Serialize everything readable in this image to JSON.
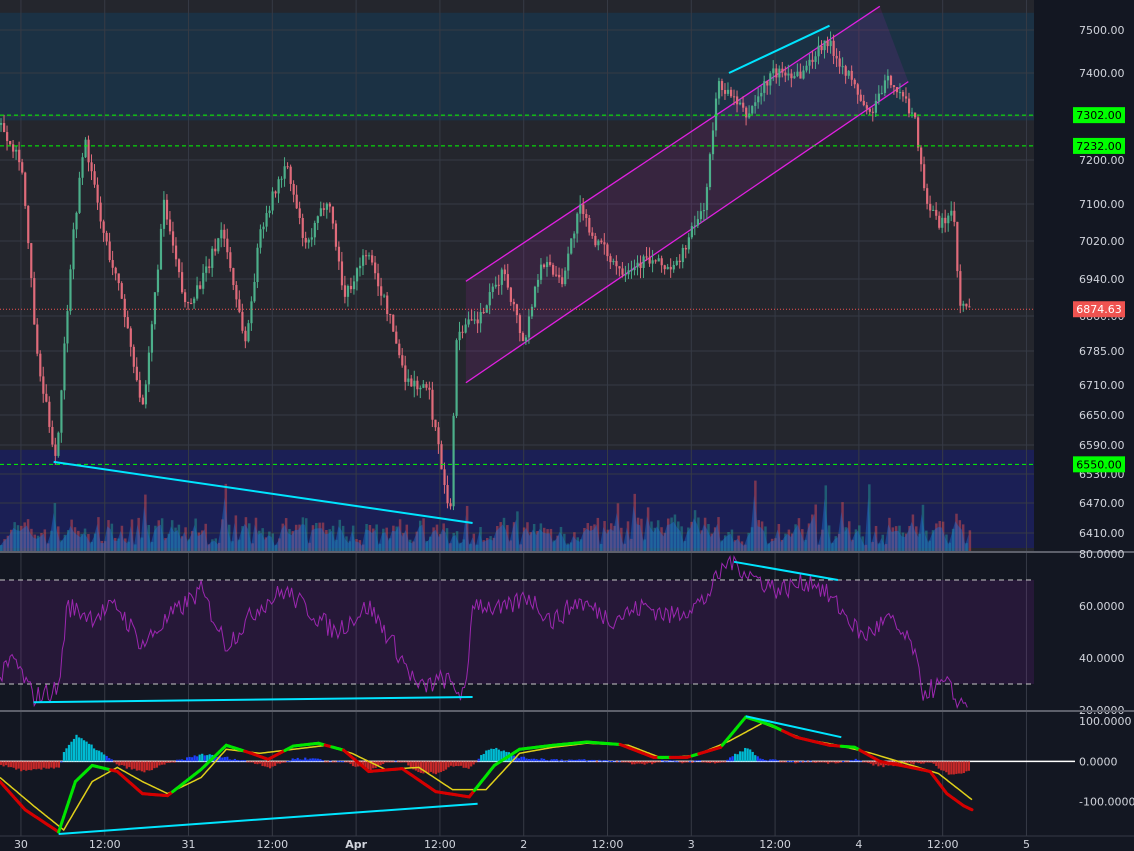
{
  "chart_data": {
    "type": "candlestick",
    "price_axis": {
      "ticks": [
        "7500.00",
        "7400.00",
        "7300.00",
        "7200.00",
        "7100.00",
        "7020.00",
        "6940.00",
        "6860.00",
        "6785.00",
        "6710.00",
        "6650.00",
        "6590.00",
        "6530.00",
        "6470.00",
        "6410.00"
      ],
      "ylim": [
        6380,
        7540
      ]
    },
    "time_axis": {
      "ticks": [
        {
          "label": "30",
          "bold": false
        },
        {
          "label": "12:00",
          "bold": false
        },
        {
          "label": "31",
          "bold": false
        },
        {
          "label": "12:00",
          "bold": false
        },
        {
          "label": "Apr",
          "bold": true
        },
        {
          "label": "12:00",
          "bold": false
        },
        {
          "label": "2",
          "bold": false
        },
        {
          "label": "12:00",
          "bold": false
        },
        {
          "label": "3",
          "bold": false
        },
        {
          "label": "12:00",
          "bold": false
        },
        {
          "label": "4",
          "bold": false
        },
        {
          "label": "12:00",
          "bold": false
        },
        {
          "label": "5",
          "bold": false
        }
      ],
      "xlim": [
        0,
        6.17
      ]
    },
    "price_path": [
      [
        0,
        7280
      ],
      [
        0.12,
        7200
      ],
      [
        0.22,
        6750
      ],
      [
        0.33,
        6560
      ],
      [
        0.42,
        7000
      ],
      [
        0.5,
        7250
      ],
      [
        0.6,
        7050
      ],
      [
        0.72,
        6900
      ],
      [
        0.85,
        6650
      ],
      [
        0.97,
        7100
      ],
      [
        1.1,
        6880
      ],
      [
        1.22,
        6950
      ],
      [
        1.32,
        7050
      ],
      [
        1.46,
        6800
      ],
      [
        1.55,
        7050
      ],
      [
        1.7,
        7190
      ],
      [
        1.82,
        7000
      ],
      [
        1.95,
        7120
      ],
      [
        2.05,
        6900
      ],
      [
        2.18,
        7000
      ],
      [
        2.3,
        6880
      ],
      [
        2.42,
        6720
      ],
      [
        2.55,
        6700
      ],
      [
        2.68,
        6450
      ],
      [
        2.72,
        6830
      ],
      [
        2.85,
        6850
      ],
      [
        3.0,
        6960
      ],
      [
        3.12,
        6800
      ],
      [
        3.22,
        6980
      ],
      [
        3.35,
        6940
      ],
      [
        3.45,
        7090
      ],
      [
        3.55,
        7020
      ],
      [
        3.7,
        6960
      ],
      [
        3.85,
        6980
      ],
      [
        4.02,
        6960
      ],
      [
        4.2,
        7100
      ],
      [
        4.28,
        7380
      ],
      [
        4.45,
        7300
      ],
      [
        4.6,
        7400
      ],
      [
        4.78,
        7400
      ],
      [
        4.92,
        7480
      ],
      [
        5.05,
        7400
      ],
      [
        5.18,
        7300
      ],
      [
        5.3,
        7390
      ],
      [
        5.45,
        7300
      ],
      [
        5.52,
        7110
      ],
      [
        5.6,
        7050
      ],
      [
        5.68,
        7090
      ],
      [
        5.72,
        6880
      ],
      [
        5.78,
        6874.63
      ]
    ],
    "price_lines": [
      {
        "label": "7302.00",
        "value": 7302,
        "color": "#00ff00"
      },
      {
        "label": "7232.00",
        "value": 7232,
        "color": "#00ff00"
      },
      {
        "label": "6550.00",
        "value": 6550,
        "color": "#00ff00"
      }
    ],
    "last_price": {
      "label": "6874.63",
      "value": 6874.63,
      "color": "#ef5350"
    },
    "channel": {
      "upper": [
        [
          2.78,
          6935
        ],
        [
          5.25,
          7555
        ]
      ],
      "lower": [
        [
          2.78,
          6715
        ],
        [
          5.42,
          7380
        ]
      ],
      "color": "#e020e0"
    },
    "price_trendlines": [
      {
        "from": [
          0.32,
          6555
        ],
        "to": [
          2.82,
          6430
        ],
        "color": "#00e5ff"
      },
      {
        "from": [
          4.35,
          7400
        ],
        "to": [
          4.95,
          7510
        ],
        "color": "#00e5ff"
      }
    ],
    "zones": [
      {
        "from": 7290,
        "to": 7540,
        "color": "#1b3347"
      },
      {
        "from": 6380,
        "to": 6580,
        "color": "#1b1f5a"
      }
    ],
    "volume_color": "#1f6fd0",
    "rsi": {
      "ticks": [
        "80.0000",
        "60.0000",
        "40.0000",
        "20.0000"
      ],
      "ylim": [
        20,
        80
      ],
      "band": [
        30,
        70
      ],
      "path": [
        [
          0,
          32
        ],
        [
          0.08,
          40
        ],
        [
          0.2,
          25
        ],
        [
          0.35,
          28
        ],
        [
          0.4,
          60
        ],
        [
          0.55,
          56
        ],
        [
          0.7,
          60
        ],
        [
          0.85,
          45
        ],
        [
          1.0,
          55
        ],
        [
          1.2,
          66
        ],
        [
          1.35,
          45
        ],
        [
          1.55,
          60
        ],
        [
          1.7,
          66
        ],
        [
          1.85,
          58
        ],
        [
          2.0,
          50
        ],
        [
          2.2,
          60
        ],
        [
          2.35,
          45
        ],
        [
          2.5,
          28
        ],
        [
          2.65,
          32
        ],
        [
          2.78,
          25
        ],
        [
          2.82,
          62
        ],
        [
          3.0,
          58
        ],
        [
          3.15,
          64
        ],
        [
          3.3,
          54
        ],
        [
          3.45,
          62
        ],
        [
          3.65,
          55
        ],
        [
          3.85,
          60
        ],
        [
          4.0,
          56
        ],
        [
          4.2,
          62
        ],
        [
          4.35,
          78
        ],
        [
          4.5,
          71
        ],
        [
          4.65,
          66
        ],
        [
          4.85,
          70
        ],
        [
          5.0,
          60
        ],
        [
          5.15,
          48
        ],
        [
          5.3,
          55
        ],
        [
          5.45,
          44
        ],
        [
          5.5,
          27
        ],
        [
          5.65,
          30
        ],
        [
          5.72,
          22
        ],
        [
          5.78,
          24
        ]
      ],
      "color": "#9c27b0",
      "trendlines": [
        {
          "from": [
            0.2,
            23
          ],
          "to": [
            2.82,
            25
          ],
          "color": "#00e5ff"
        },
        {
          "from": [
            4.38,
            77
          ],
          "to": [
            5.0,
            70
          ],
          "color": "#00e5ff"
        }
      ]
    },
    "oscillator": {
      "ticks": [
        "100.0000",
        "0.0000",
        "-100.0000"
      ],
      "ylim": [
        -185,
        120
      ],
      "fast": [
        [
          0,
          -50
        ],
        [
          0.15,
          -120
        ],
        [
          0.35,
          -175
        ],
        [
          0.45,
          -50
        ],
        [
          0.55,
          -10
        ],
        [
          0.7,
          -25
        ],
        [
          0.85,
          -80
        ],
        [
          1.0,
          -85
        ],
        [
          1.2,
          -20
        ],
        [
          1.35,
          40
        ],
        [
          1.5,
          20
        ],
        [
          1.6,
          5
        ],
        [
          1.75,
          38
        ],
        [
          1.9,
          45
        ],
        [
          2.05,
          28
        ],
        [
          2.2,
          -25
        ],
        [
          2.4,
          -18
        ],
        [
          2.6,
          -75
        ],
        [
          2.8,
          -88
        ],
        [
          2.95,
          -10
        ],
        [
          3.1,
          30
        ],
        [
          3.3,
          40
        ],
        [
          3.5,
          48
        ],
        [
          3.7,
          42
        ],
        [
          3.9,
          10
        ],
        [
          4.1,
          10
        ],
        [
          4.3,
          35
        ],
        [
          4.45,
          110
        ],
        [
          4.6,
          90
        ],
        [
          4.75,
          60
        ],
        [
          4.95,
          40
        ],
        [
          5.1,
          35
        ],
        [
          5.25,
          0
        ],
        [
          5.4,
          -12
        ],
        [
          5.55,
          -25
        ],
        [
          5.65,
          -80
        ],
        [
          5.75,
          -110
        ],
        [
          5.8,
          -120
        ]
      ],
      "slow": [
        [
          0,
          -40
        ],
        [
          0.2,
          -110
        ],
        [
          0.38,
          -170
        ],
        [
          0.55,
          -50
        ],
        [
          0.7,
          -15
        ],
        [
          0.85,
          -50
        ],
        [
          1.0,
          -80
        ],
        [
          1.2,
          -40
        ],
        [
          1.35,
          30
        ],
        [
          1.55,
          20
        ],
        [
          1.75,
          30
        ],
        [
          1.95,
          40
        ],
        [
          2.1,
          20
        ],
        [
          2.3,
          -20
        ],
        [
          2.5,
          -15
        ],
        [
          2.7,
          -70
        ],
        [
          2.9,
          -70
        ],
        [
          3.1,
          20
        ],
        [
          3.3,
          35
        ],
        [
          3.5,
          45
        ],
        [
          3.75,
          40
        ],
        [
          3.95,
          8
        ],
        [
          4.15,
          15
        ],
        [
          4.35,
          50
        ],
        [
          4.55,
          95
        ],
        [
          4.8,
          55
        ],
        [
          5.0,
          40
        ],
        [
          5.2,
          20
        ],
        [
          5.4,
          -5
        ],
        [
          5.6,
          -30
        ],
        [
          5.8,
          -95
        ]
      ],
      "fast_color": "#00e600",
      "slow_color": "#e0d01a",
      "trendlines": [
        {
          "from": [
            0.35,
            -180
          ],
          "to": [
            2.85,
            -105
          ],
          "color": "#00e5ff"
        },
        {
          "from": [
            4.45,
            112
          ],
          "to": [
            5.02,
            60
          ],
          "color": "#00e5ff"
        }
      ]
    }
  }
}
